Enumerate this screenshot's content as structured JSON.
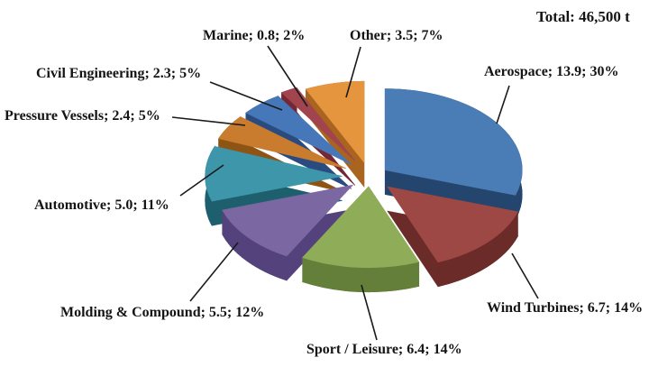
{
  "figure": {
    "total_label": "Total: 46,500 t"
  },
  "chart_data": {
    "type": "pie",
    "style": "3d-exploded",
    "title": "",
    "total_label": "Total: 46,500 t",
    "total_value": 46500,
    "unit": "t",
    "legend": "none (labels with leader lines)",
    "label_format": "name; value; percent",
    "slices": [
      {
        "id": "aerospace",
        "label": "Aerospace",
        "value": 13.9,
        "pct": 30,
        "label_text": "Aerospace; 13.9; 30%",
        "top_color": "#4A7CB5",
        "side_color": "#24466E"
      },
      {
        "id": "wind-turbines",
        "label": "Wind Turbines",
        "value": 6.7,
        "pct": 14,
        "label_text": "Wind Turbines; 6.7; 14%",
        "top_color": "#9D4845",
        "side_color": "#6B2B28"
      },
      {
        "id": "sport-leisure",
        "label": "Sport / Leisure",
        "value": 6.4,
        "pct": 14,
        "label_text": "Sport / Leisure; 6.4; 14%",
        "top_color": "#8FAC58",
        "side_color": "#647F39"
      },
      {
        "id": "molding-compound",
        "label": "Molding & Compound",
        "value": 5.5,
        "pct": 12,
        "label_text": "Molding & Compound; 5.5; 12%",
        "top_color": "#7B67A2",
        "side_color": "#53427B"
      },
      {
        "id": "automotive",
        "label": "Automotive",
        "value": 5.0,
        "pct": 11,
        "label_text": "Automotive; 5.0; 11%",
        "top_color": "#3D96A9",
        "side_color": "#1D5F6D"
      },
      {
        "id": "pressure-vessels",
        "label": "Pressure Vessels",
        "value": 2.4,
        "pct": 5,
        "label_text": "Pressure Vessels; 2.4; 5%",
        "top_color": "#C97B2E",
        "side_color": "#8E5414"
      },
      {
        "id": "civil-engineering",
        "label": "Civil Engineering",
        "value": 2.3,
        "pct": 5,
        "label_text": "Civil Engineering; 2.3; 5%",
        "top_color": "#4677B8",
        "side_color": "#294B80"
      },
      {
        "id": "marine",
        "label": "Marine",
        "value": 0.8,
        "pct": 2,
        "label_text": "Marine; 0.8; 2%",
        "top_color": "#A2444E",
        "side_color": "#742734"
      },
      {
        "id": "other",
        "label": "Other",
        "value": 3.5,
        "pct": 7,
        "label_text": "Other; 3.5; 7%",
        "top_color": "#E6953F",
        "side_color": "#A96420"
      }
    ]
  }
}
